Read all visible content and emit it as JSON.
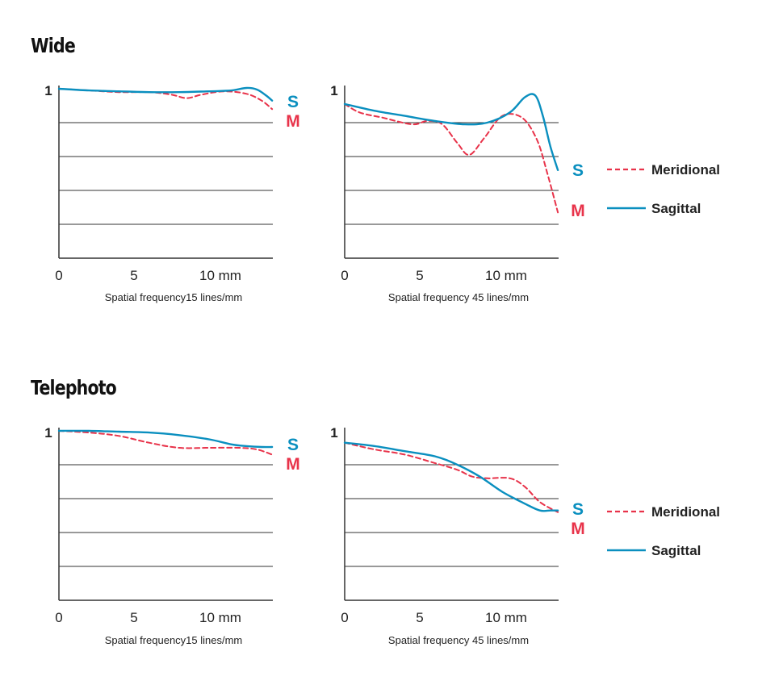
{
  "sections": [
    {
      "title": "Wide"
    },
    {
      "title": "Telephoto"
    }
  ],
  "colors": {
    "meridional": "#e8334a",
    "sagittal": "#0a8fbf",
    "grid": "#333333",
    "text": "#222222"
  },
  "legend": {
    "meridional": "Meridional",
    "sagittal": "Sagittal"
  },
  "chart_data": [
    {
      "type": "line",
      "section": "Wide",
      "xlabel": "Spatial frequency15 lines/mm",
      "x_ticks": [
        "0",
        "5",
        "10 mm"
      ],
      "y_tick": "1",
      "xlim": [
        0,
        14.2
      ],
      "ylim": [
        0,
        1
      ],
      "grid": true,
      "end_labels": {
        "sagittal": "S",
        "meridional": "M"
      },
      "series": [
        {
          "name": "Meridional",
          "key": "meridional",
          "style": "dashed",
          "x": [
            0,
            2,
            4,
            6,
            7.5,
            8.5,
            9.5,
            11,
            12.5,
            13.5,
            14.2
          ],
          "y": [
            1.0,
            0.99,
            0.98,
            0.98,
            0.965,
            0.945,
            0.965,
            0.985,
            0.97,
            0.93,
            0.88
          ]
        },
        {
          "name": "Sagittal",
          "key": "sagittal",
          "style": "solid",
          "x": [
            0,
            2,
            4,
            6,
            8,
            10,
            11.5,
            12.5,
            13.2,
            13.8,
            14.2
          ],
          "y": [
            1.0,
            0.99,
            0.985,
            0.98,
            0.98,
            0.985,
            0.99,
            1.005,
            0.995,
            0.96,
            0.93
          ]
        }
      ]
    },
    {
      "type": "line",
      "section": "Wide",
      "xlabel": "Spatial frequency 45 lines/mm",
      "x_ticks": [
        "0",
        "5",
        "10 mm"
      ],
      "y_tick": "1",
      "xlim": [
        0,
        14.2
      ],
      "ylim": [
        0,
        1
      ],
      "grid": true,
      "end_labels": {
        "sagittal": "S",
        "meridional": "M"
      },
      "series": [
        {
          "name": "Meridional",
          "key": "meridional",
          "style": "dashed",
          "x": [
            0,
            1,
            2.5,
            4.5,
            5.5,
            6.5,
            7.5,
            8.3,
            9.3,
            10.5,
            11.8,
            12.8,
            13.5,
            14.2
          ],
          "y": [
            0.91,
            0.86,
            0.83,
            0.79,
            0.81,
            0.79,
            0.68,
            0.61,
            0.71,
            0.84,
            0.83,
            0.7,
            0.5,
            0.27
          ]
        },
        {
          "name": "Sagittal",
          "key": "sagittal",
          "style": "solid",
          "x": [
            0,
            2,
            4,
            6,
            8,
            9.5,
            11,
            12,
            12.7,
            13.2,
            13.7,
            14.2
          ],
          "y": [
            0.91,
            0.87,
            0.84,
            0.81,
            0.79,
            0.8,
            0.86,
            0.95,
            0.96,
            0.84,
            0.66,
            0.52
          ]
        }
      ]
    },
    {
      "type": "line",
      "section": "Telephoto",
      "xlabel": "Spatial frequency15 lines/mm",
      "x_ticks": [
        "0",
        "5",
        "10 mm"
      ],
      "y_tick": "1",
      "xlim": [
        0,
        14.2
      ],
      "ylim": [
        0,
        1
      ],
      "grid": true,
      "end_labels": {
        "sagittal": "S",
        "meridional": "M"
      },
      "series": [
        {
          "name": "Meridional",
          "key": "meridional",
          "style": "dashed",
          "x": [
            0,
            2,
            4,
            6,
            8,
            10,
            12,
            13.2,
            14.2
          ],
          "y": [
            1.0,
            0.99,
            0.97,
            0.93,
            0.9,
            0.9,
            0.9,
            0.89,
            0.86
          ]
        },
        {
          "name": "Sagittal",
          "key": "sagittal",
          "style": "solid",
          "x": [
            0,
            2,
            4,
            6,
            8,
            10,
            11.5,
            12.5,
            13.5,
            14.2
          ],
          "y": [
            1.0,
            1.0,
            0.995,
            0.99,
            0.975,
            0.95,
            0.92,
            0.91,
            0.905,
            0.905
          ]
        }
      ]
    },
    {
      "type": "line",
      "section": "Telephoto",
      "xlabel": "Spatial frequency 45 lines/mm",
      "x_ticks": [
        "0",
        "5",
        "10 mm"
      ],
      "y_tick": "1",
      "xlim": [
        0,
        14.2
      ],
      "ylim": [
        0,
        1
      ],
      "grid": true,
      "end_labels": {
        "sagittal": "S",
        "meridional": "M"
      },
      "series": [
        {
          "name": "Meridional",
          "key": "meridional",
          "style": "dashed",
          "x": [
            0,
            2,
            4,
            6,
            7.5,
            8.5,
            9.5,
            11,
            12,
            13,
            14.2
          ],
          "y": [
            0.93,
            0.89,
            0.86,
            0.81,
            0.77,
            0.73,
            0.72,
            0.72,
            0.67,
            0.58,
            0.52
          ]
        },
        {
          "name": "Sagittal",
          "key": "sagittal",
          "style": "solid",
          "x": [
            0,
            2,
            4,
            6,
            7.5,
            9,
            10.5,
            12,
            13,
            13.7,
            14.2
          ],
          "y": [
            0.93,
            0.91,
            0.88,
            0.85,
            0.8,
            0.73,
            0.64,
            0.57,
            0.53,
            0.53,
            0.53
          ]
        }
      ]
    }
  ]
}
